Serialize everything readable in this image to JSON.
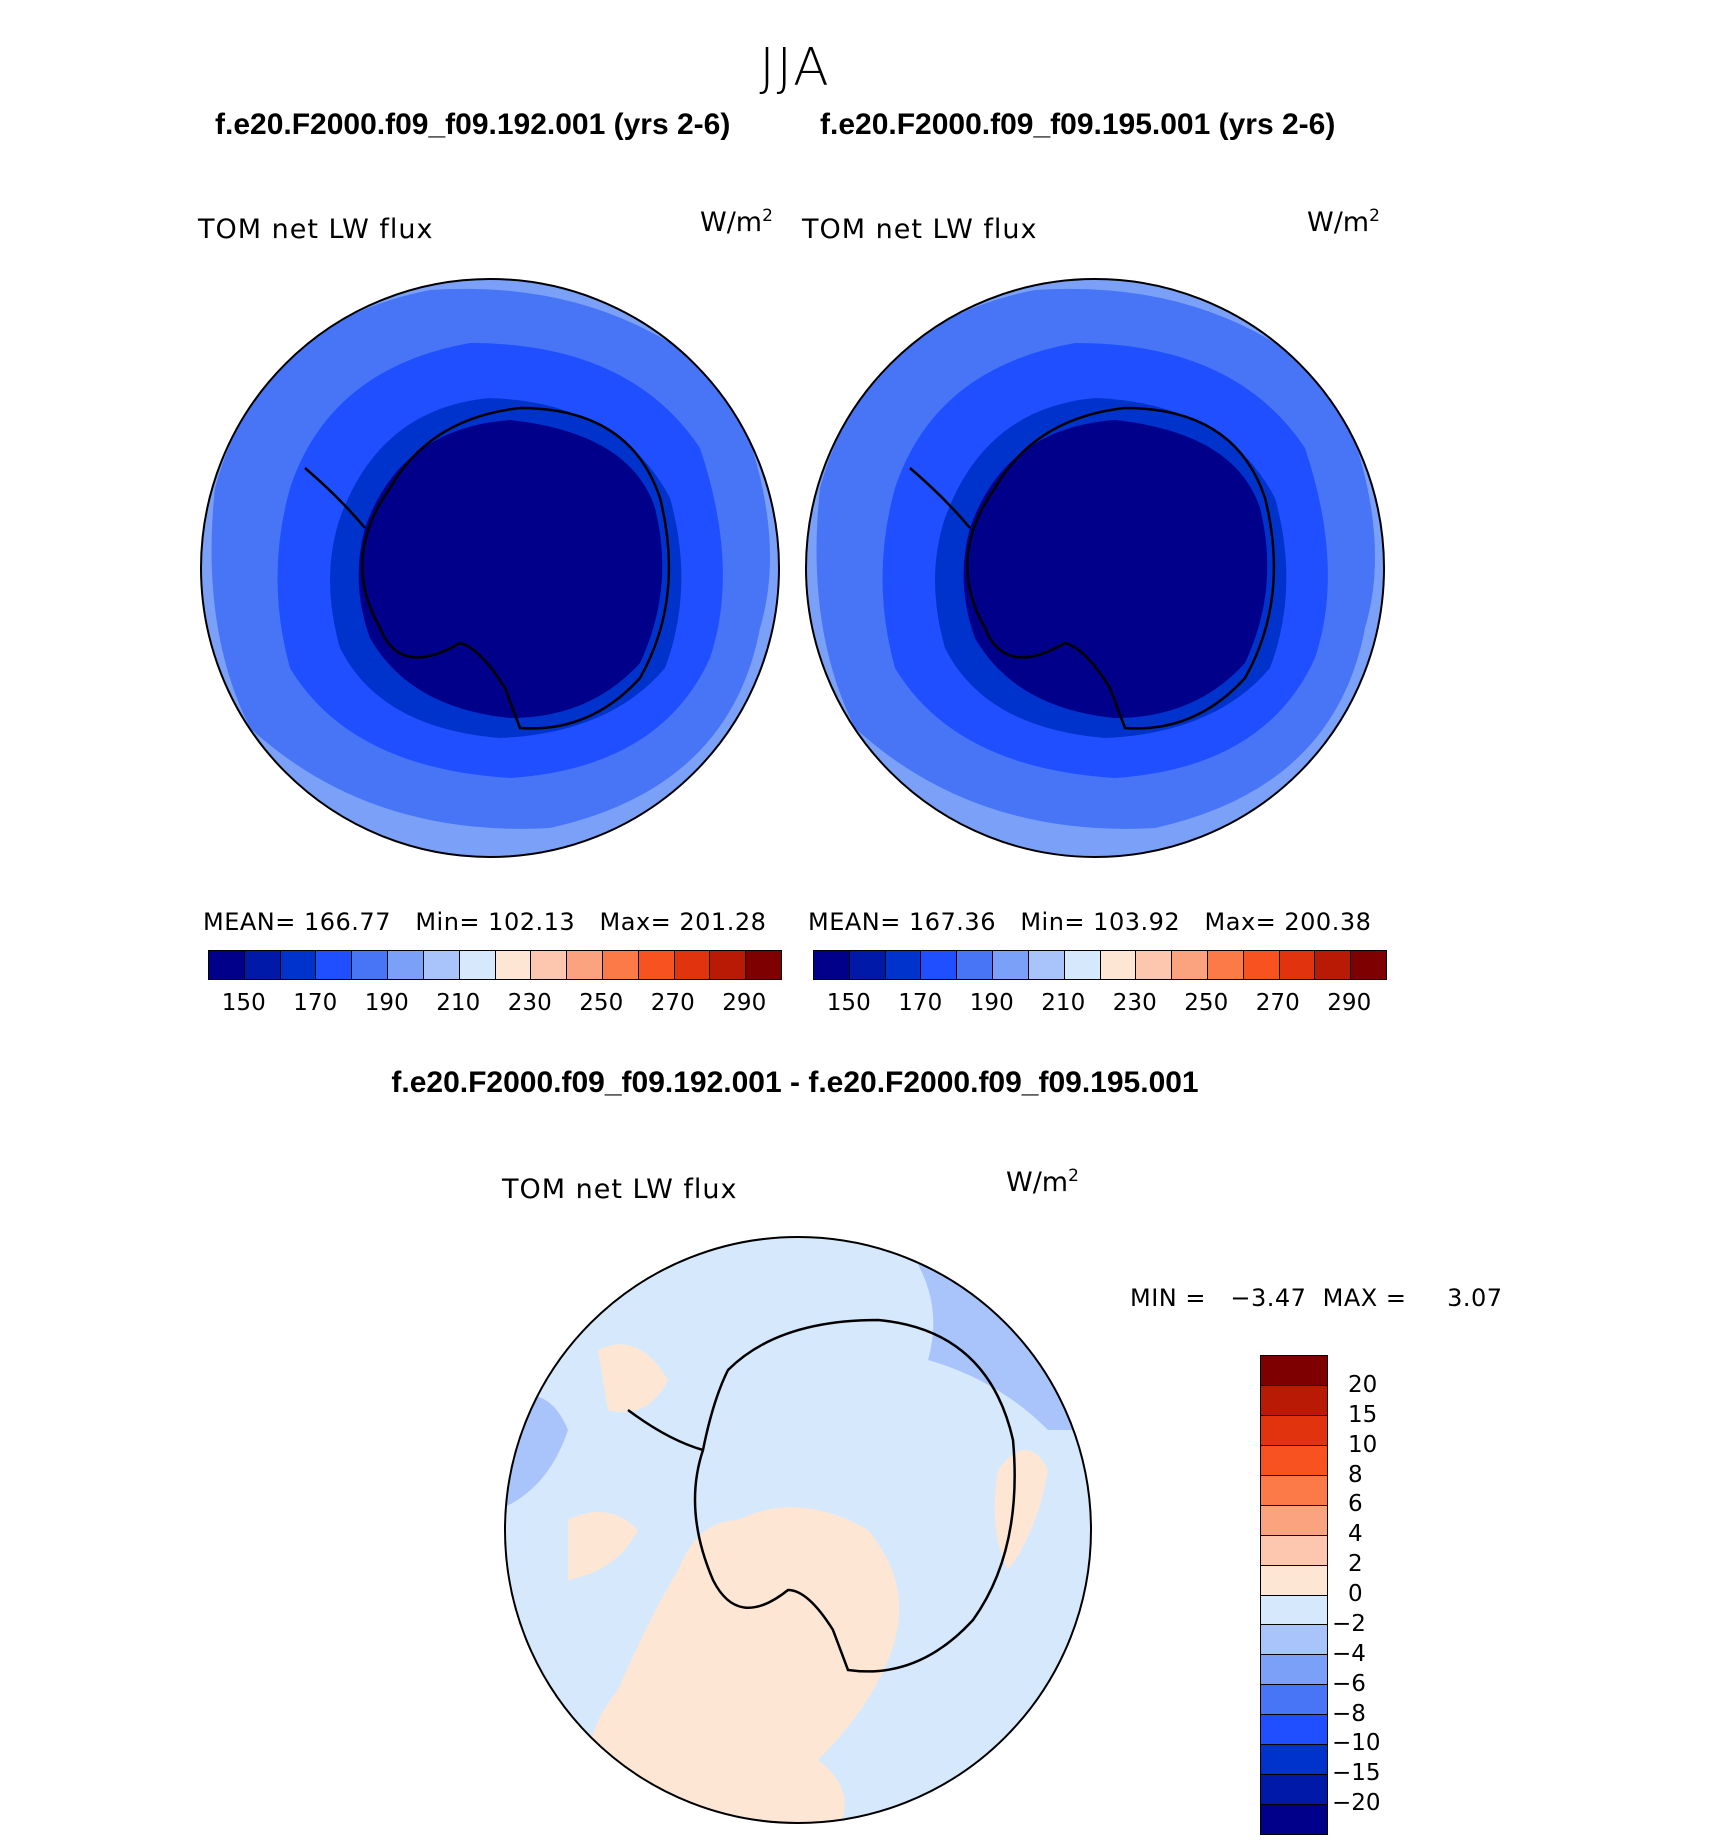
{
  "figure": {
    "season": "JJA",
    "panels": [
      {
        "case_title": "f.e20.F2000.f09_f09.192.001 (yrs 2-6)",
        "var_label": "TOM net LW flux",
        "units": "W/m",
        "units_exp": "2",
        "stats": "MEAN= 166.77   Min= 102.13   Max= 201.28"
      },
      {
        "case_title": "f.e20.F2000.f09_f09.195.001 (yrs 2-6)",
        "var_label": "TOM net LW flux",
        "units": "W/m",
        "units_exp": "2",
        "stats": "MEAN= 167.36   Min= 103.92   Max= 200.38"
      }
    ],
    "colorbar": {
      "colors": [
        "#00008b",
        "#0019a8",
        "#0033cc",
        "#1f4fff",
        "#4775f5",
        "#7aa0f8",
        "#a9c4fb",
        "#d6e8fc",
        "#fde7d4",
        "#fcc7ae",
        "#fba27f",
        "#fb7a48",
        "#f7521f",
        "#e0330e",
        "#b81a06",
        "#7e0000"
      ],
      "tick_labels": [
        "150",
        "170",
        "190",
        "210",
        "230",
        "250",
        "270",
        "290"
      ]
    },
    "difference": {
      "title": "f.e20.F2000.f09_f09.192.001 - f.e20.F2000.f09_f09.195.001",
      "var_label": "TOM net LW flux",
      "units": "W/m",
      "units_exp": "2",
      "min_max": "MIN =   −3.47  MAX =     3.07",
      "colors": [
        "#7e0000",
        "#b81a06",
        "#e0330e",
        "#f7521f",
        "#fb7a48",
        "#fba27f",
        "#fcc7ae",
        "#fde7d4",
        "#d6e8fc",
        "#a9c4fb",
        "#7aa0f8",
        "#4775f5",
        "#1f4fff",
        "#0033cc",
        "#0019a8",
        "#00008b"
      ],
      "tick_labels": [
        "20",
        "15",
        "10",
        "8",
        "6",
        "4",
        "2",
        "0",
        "−2",
        "−4",
        "−6",
        "−8",
        "−10",
        "−15",
        "−20"
      ]
    }
  }
}
